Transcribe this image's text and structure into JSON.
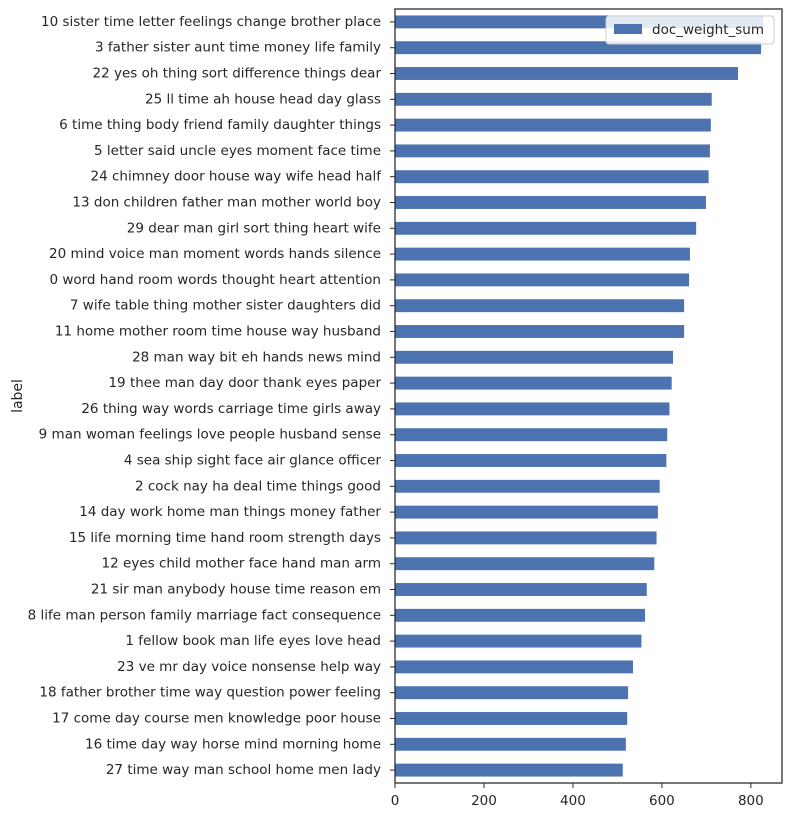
{
  "chart_data": {
    "type": "bar",
    "orientation": "horizontal",
    "ylabel": "label",
    "xlabel": "",
    "xlim": [
      0,
      870
    ],
    "xticks": [
      0,
      200,
      400,
      600,
      800
    ],
    "grid": false,
    "legend": {
      "placement": "top-right",
      "entries": [
        "doc_weight_sum"
      ]
    },
    "colors": {
      "bar": "#4c72b0",
      "axis": "#262626"
    },
    "categories": [
      "10 sister time letter feelings change brother place",
      "3 father sister aunt time money life family",
      "22 yes oh thing sort difference things dear",
      "25 ll time ah house head day glass",
      "6 time thing body friend family daughter things",
      "5 letter said uncle eyes moment face time",
      "24 chimney door house way wife head half",
      "13 don children father man mother world boy",
      "29 dear man girl sort thing heart wife",
      "20 mind voice man moment words hands silence",
      "0 word hand room words thought heart attention",
      "7 wife table thing mother sister daughters did",
      "11 home mother room time house way husband",
      "28 man way bit eh hands news mind",
      "19 thee man day door thank eyes paper",
      "26 thing way words carriage time girls away",
      "9 man woman feelings love people husband sense",
      "4 sea ship sight face air glance officer",
      "2 cock nay ha deal time things good",
      "14 day work home man things money father",
      "15 life morning time hand room strength days",
      "12 eyes child mother face hand man arm",
      "21 sir man anybody house time reason em",
      "8 life man person family marriage fact consequence",
      "1 fellow book man life eyes love head",
      "23 ve mr day voice nonsense help way",
      "18 father brother time way question power feeling",
      "17 come day course men knowledge poor house",
      "16 time day way horse mind morning home",
      "27 time way man school home men lady"
    ],
    "series": [
      {
        "name": "doc_weight_sum",
        "values": [
          828,
          823,
          771,
          712,
          710,
          708,
          705,
          699,
          677,
          663,
          661,
          650,
          650,
          625,
          622,
          617,
          612,
          610,
          595,
          591,
          588,
          583,
          566,
          562,
          554,
          535,
          524,
          522,
          519,
          512
        ]
      }
    ]
  }
}
